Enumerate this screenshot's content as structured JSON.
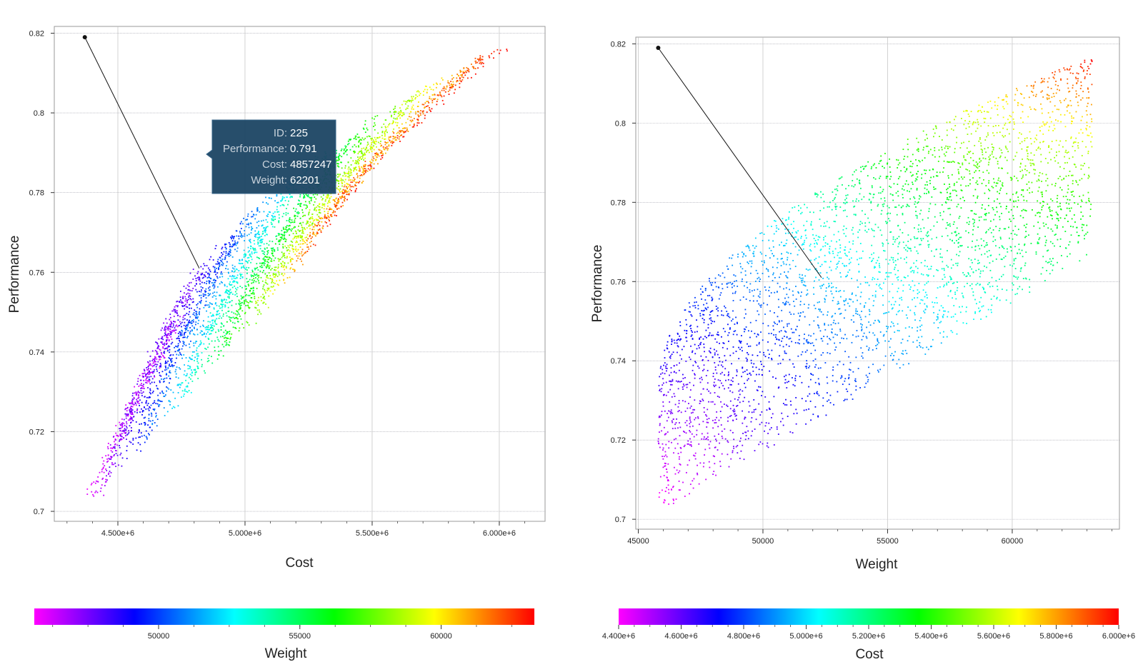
{
  "chart_data": [
    {
      "type": "scatter",
      "xlabel": "Cost",
      "ylabel": "Performance",
      "xlim": [
        4250000,
        6180000
      ],
      "ylim": [
        0.6975,
        0.8217
      ],
      "x_ticks": [
        "4.500e+6",
        "5.000e+6",
        "5.500e+6",
        "6.000e+6"
      ],
      "x_tick_values": [
        4500000,
        5000000,
        5500000,
        6000000
      ],
      "y_ticks": [
        "0.7",
        "0.72",
        "0.74",
        "0.76",
        "0.78",
        "0.8",
        "0.82"
      ],
      "y_tick_values": [
        0.7,
        0.72,
        0.74,
        0.76,
        0.78,
        0.8,
        0.82
      ],
      "grid": true,
      "color_by": "Weight",
      "colorbar": {
        "label": "Weight",
        "range": [
          45600,
          63300
        ],
        "ticks": [
          "50000",
          "55000",
          "60000"
        ],
        "tick_values": [
          50000,
          55000,
          60000
        ],
        "colormap": [
          "#ff00ff",
          "#0000ff",
          "#00ffff",
          "#00ff00",
          "#ffff00",
          "#ff0000"
        ]
      },
      "highlight_point": {
        "x": 4370000,
        "y": 0.819
      },
      "annotation_line": {
        "x1": 4370000,
        "y1": 0.819,
        "x2": 4820000,
        "y2": 0.761
      },
      "tooltip": {
        "rows": [
          {
            "label": "ID:",
            "value": "225"
          },
          {
            "label": "Performance:",
            "value": "0.791"
          },
          {
            "label": "Cost:",
            "value": "4857247"
          },
          {
            "label": "Weight:",
            "value": "62201"
          }
        ],
        "anchor": {
          "x": 4857247,
          "y": 0.791
        }
      }
    },
    {
      "type": "scatter",
      "xlabel": "Weight",
      "ylabel": "Performance",
      "xlim": [
        44900,
        64300
      ],
      "ylim": [
        0.6975,
        0.8217
      ],
      "x_ticks": [
        "45000",
        "50000",
        "55000",
        "60000"
      ],
      "x_tick_values": [
        45000,
        50000,
        55000,
        60000
      ],
      "y_ticks": [
        "0.7",
        "0.72",
        "0.74",
        "0.76",
        "0.78",
        "0.8",
        "0.82"
      ],
      "y_tick_values": [
        0.7,
        0.72,
        0.74,
        0.76,
        0.78,
        0.8,
        0.82
      ],
      "grid": true,
      "color_by": "Cost",
      "colorbar": {
        "label": "Cost",
        "range": [
          4400000,
          6000000
        ],
        "ticks": [
          "4.400e+6",
          "4.600e+6",
          "4.800e+6",
          "5.000e+6",
          "5.200e+6",
          "5.400e+6",
          "5.600e+6",
          "5.800e+6",
          "6.000e+6"
        ],
        "tick_values": [
          4400000,
          4600000,
          4800000,
          5000000,
          5200000,
          5400000,
          5600000,
          5800000,
          6000000
        ],
        "colormap": [
          "#ff00ff",
          "#0000ff",
          "#00ffff",
          "#00ff00",
          "#ffff00",
          "#ff0000"
        ]
      },
      "highlight_point": {
        "x": 45800,
        "y": 0.819
      },
      "annotation_line": {
        "x1": 45800,
        "y1": 0.819,
        "x2": 52350,
        "y2": 0.761
      }
    }
  ]
}
